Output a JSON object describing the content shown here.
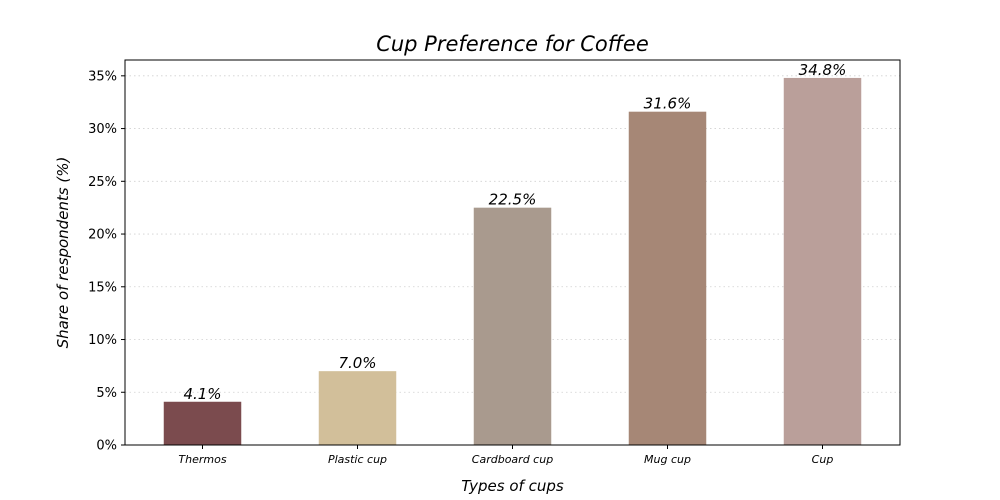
{
  "chart_data": {
    "type": "bar",
    "title": "Cup Preference for Coffee",
    "xlabel": "Types of cups",
    "ylabel": "Share of respondents (%)",
    "categories": [
      "Thermos",
      "Plastic cup",
      "Cardboard cup",
      "Mug cup",
      "Cup"
    ],
    "values": [
      4.1,
      7.0,
      22.5,
      31.6,
      34.8
    ],
    "value_labels": [
      "4.1%",
      "7.0%",
      "22.5%",
      "31.6%",
      "34.8%"
    ],
    "colors": [
      "#7b4b4e",
      "#d2bf9a",
      "#a99a8e",
      "#a68776",
      "#ba9f9a"
    ],
    "ylim": [
      0,
      36.5
    ],
    "yticks": [
      0,
      5,
      10,
      15,
      20,
      25,
      30,
      35
    ],
    "ytick_labels": [
      "0%",
      "5%",
      "10%",
      "15%",
      "20%",
      "25%",
      "30%",
      "35%"
    ],
    "grid": true,
    "legend": "none"
  }
}
